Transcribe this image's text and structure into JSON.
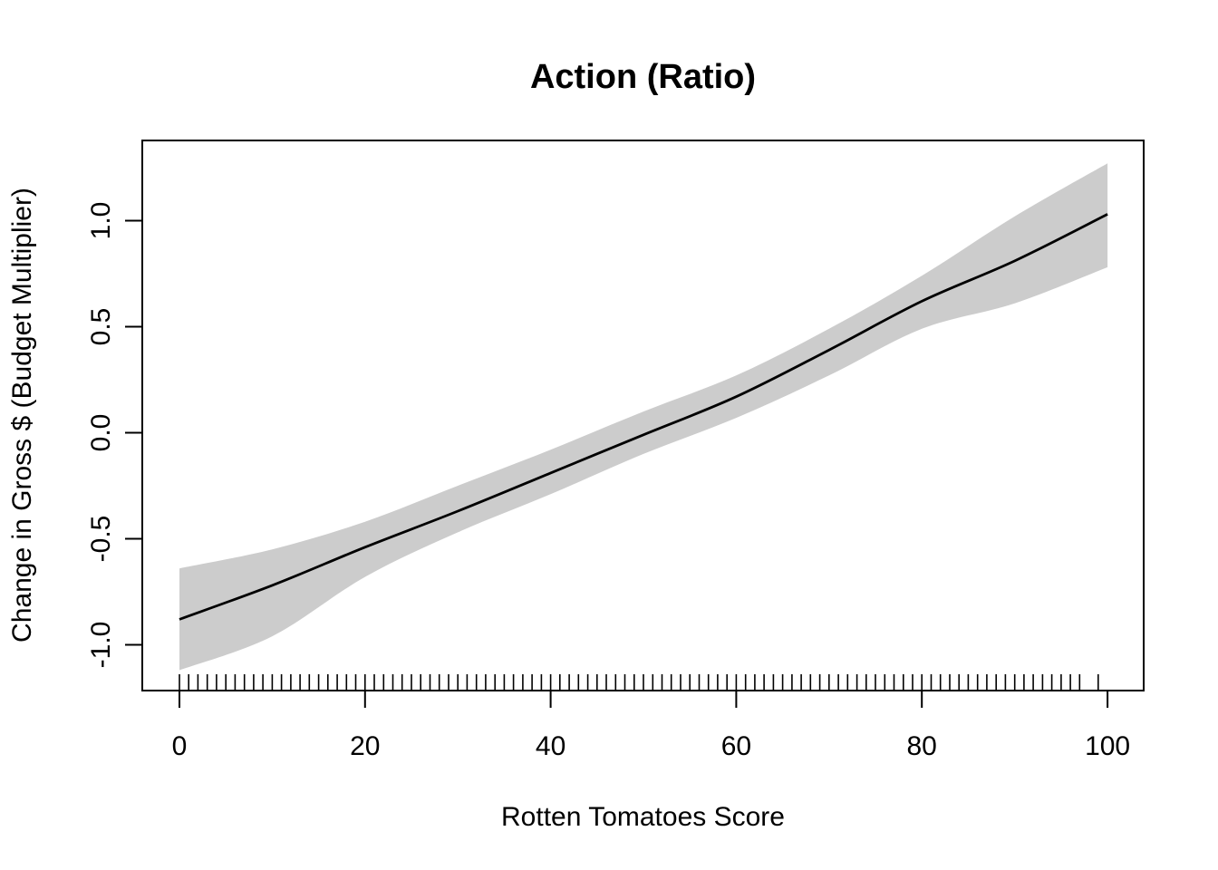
{
  "chart_data": {
    "type": "line",
    "title": "Action (Ratio)",
    "xlabel": "Rotten Tomatoes Score",
    "ylabel": "Change in Gross $ (Budget Multiplier)",
    "xlim": [
      -4.0,
      103.9
    ],
    "ylim": [
      -1.216,
      1.378
    ],
    "grid": false,
    "legend": "none",
    "x_ticks": [
      {
        "value": 0,
        "label": "0"
      },
      {
        "value": 20,
        "label": "20"
      },
      {
        "value": 40,
        "label": "40"
      },
      {
        "value": 60,
        "label": "60"
      },
      {
        "value": 80,
        "label": "80"
      },
      {
        "value": 100,
        "label": "100"
      }
    ],
    "y_ticks": [
      {
        "value": -1.0,
        "label": "-1.0"
      },
      {
        "value": -0.5,
        "label": "-0.5"
      },
      {
        "value": 0.0,
        "label": "0.0"
      },
      {
        "value": 0.5,
        "label": "0.5"
      },
      {
        "value": 1.0,
        "label": "1.0"
      }
    ],
    "series": [
      {
        "name": "smooth-fit",
        "x": [
          0,
          10,
          20,
          30,
          40,
          50,
          60,
          70,
          80,
          90,
          100
        ],
        "y": [
          -0.88,
          -0.72,
          -0.54,
          -0.37,
          -0.19,
          -0.01,
          0.17,
          0.39,
          0.62,
          0.81,
          1.03
        ]
      }
    ],
    "confidence_band": {
      "x": [
        0,
        10,
        20,
        30,
        40,
        50,
        60,
        70,
        80,
        90,
        100
      ],
      "upper": [
        -0.64,
        -0.55,
        -0.42,
        -0.25,
        -0.08,
        0.1,
        0.27,
        0.49,
        0.74,
        1.02,
        1.27
      ],
      "lower": [
        -1.12,
        -0.96,
        -0.68,
        -0.47,
        -0.29,
        -0.1,
        0.07,
        0.27,
        0.49,
        0.61,
        0.78
      ]
    },
    "rug_scores": [
      0,
      1,
      2,
      3,
      4,
      5,
      6,
      7,
      8,
      9,
      10,
      11,
      12,
      13,
      14,
      15,
      16,
      17,
      18,
      19,
      20,
      21,
      22,
      23,
      24,
      25,
      26,
      27,
      28,
      29,
      30,
      31,
      32,
      33,
      34,
      35,
      36,
      37,
      38,
      39,
      40,
      41,
      42,
      43,
      44,
      45,
      46,
      47,
      48,
      49,
      50,
      51,
      52,
      53,
      54,
      55,
      56,
      57,
      58,
      59,
      60,
      61,
      62,
      63,
      64,
      65,
      66,
      67,
      68,
      69,
      70,
      71,
      72,
      73,
      74,
      75,
      76,
      77,
      78,
      79,
      80,
      81,
      82,
      83,
      84,
      85,
      86,
      87,
      88,
      89,
      90,
      91,
      92,
      93,
      94,
      95,
      96,
      97,
      99
    ],
    "colors": {
      "line": "#000000",
      "band": "#cccccc",
      "axis": "#000000",
      "text": "#000000",
      "background": "#ffffff"
    }
  }
}
